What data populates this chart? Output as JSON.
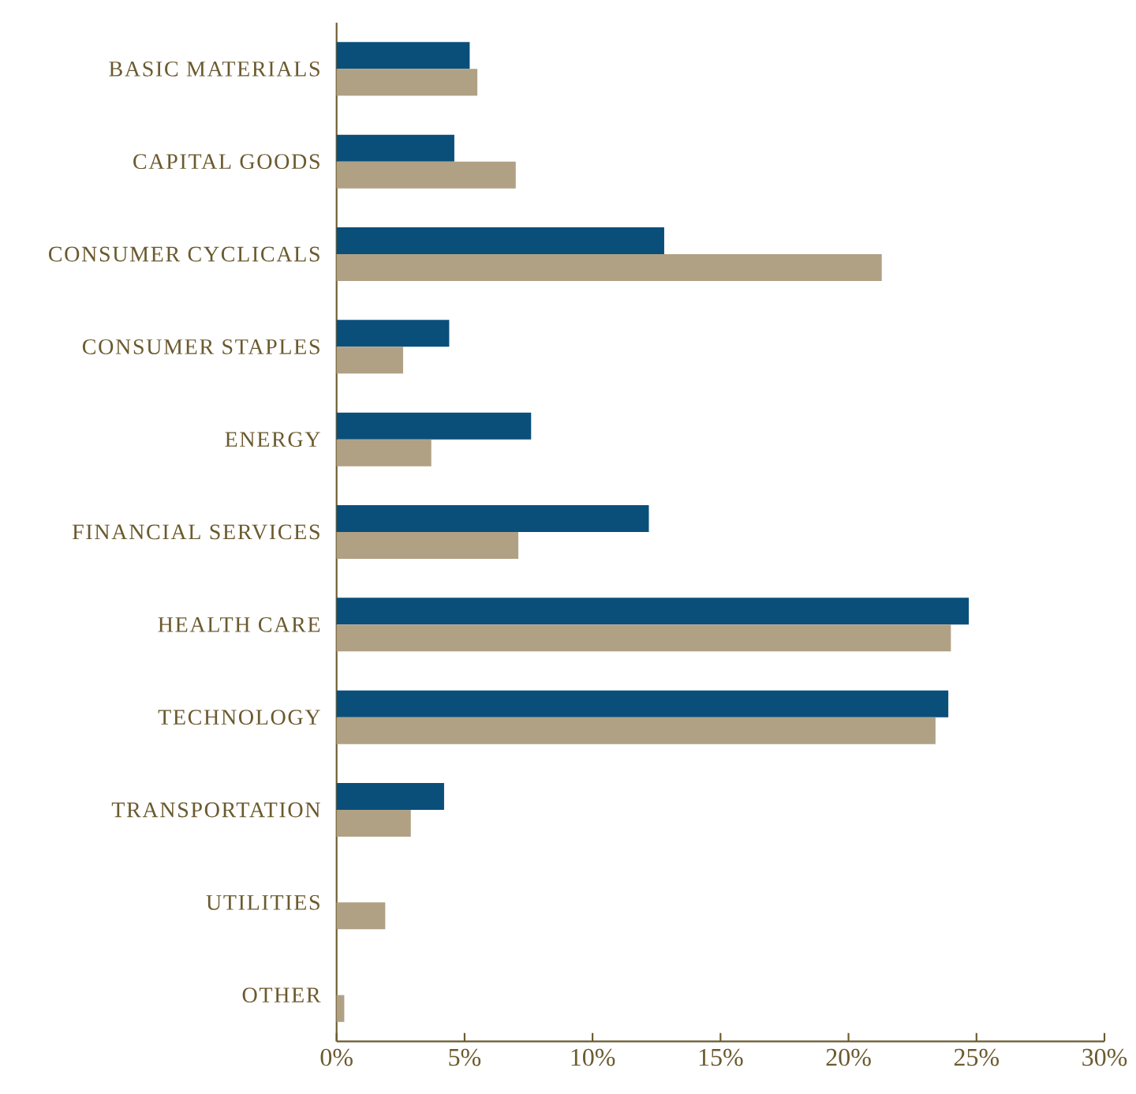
{
  "chart_data": {
    "type": "bar",
    "orientation": "horizontal",
    "categories": [
      "BASIC MATERIALS",
      "CAPITAL GOODS",
      "CONSUMER CYCLICALS",
      "CONSUMER STAPLES",
      "ENERGY",
      "FINANCIAL SERVICES",
      "HEALTH CARE",
      "TECHNOLOGY",
      "TRANSPORTATION",
      "UTILITIES",
      "OTHER"
    ],
    "series": [
      {
        "color": "#0a4f7a",
        "values": [
          5.2,
          4.6,
          12.8,
          4.4,
          7.6,
          12.2,
          24.7,
          23.9,
          4.2,
          null,
          null
        ]
      },
      {
        "color": "#b0a185",
        "values": [
          5.5,
          7.0,
          21.3,
          2.6,
          3.7,
          7.1,
          24.0,
          23.4,
          2.9,
          1.9,
          0.3
        ]
      }
    ],
    "xlim": [
      0,
      30
    ],
    "xticks": [
      {
        "value": 0,
        "label": "0%"
      },
      {
        "value": 5,
        "label": "5%"
      },
      {
        "value": 10,
        "label": "10%"
      },
      {
        "value": 15,
        "label": "15%"
      },
      {
        "value": 20,
        "label": "20%"
      },
      {
        "value": 25,
        "label": "25%"
      },
      {
        "value": 30,
        "label": "30%"
      }
    ],
    "grid": false
  }
}
